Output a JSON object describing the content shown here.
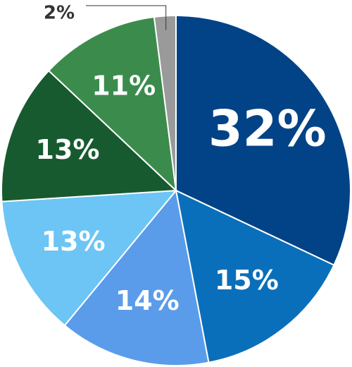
{
  "chart_data": {
    "type": "pie",
    "values": [
      32,
      15,
      14,
      13,
      13,
      11,
      2
    ],
    "value_labels": [
      "32%",
      "15%",
      "14%",
      "13%",
      "13%",
      "11%",
      "2%"
    ],
    "colors": [
      "#024387",
      "#0a6fba",
      "#5a9cea",
      "#6cc5f4",
      "#175a2f",
      "#3b8c4c",
      "#9a9a9a"
    ]
  }
}
